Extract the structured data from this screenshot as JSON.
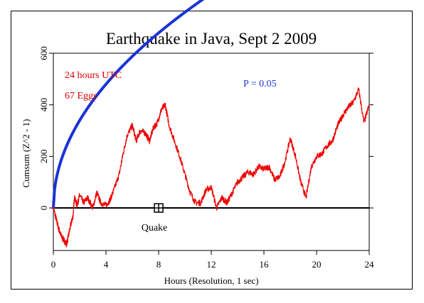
{
  "chart_data": {
    "type": "line",
    "title": "Earthquake in Java, Sept 2 2009",
    "xlabel": "Hours (Resolution, 1 sec)",
    "ylabel": "Cumsum (Z^2 - 1)",
    "xlim": [
      0,
      24
    ],
    "ylim": [
      -165,
      600
    ],
    "xticks": [
      "0",
      "4",
      "8",
      "12",
      "16",
      "20",
      "24"
    ],
    "yticks": [
      "0",
      "200",
      "400",
      "600"
    ],
    "annotations": {
      "time": "24 hours UTC",
      "eggs": "67 Eggs",
      "p_label": "P = 0.05",
      "event_label": "Quake"
    },
    "event": {
      "x": 8.0,
      "y": 0
    },
    "colors": {
      "cumsum": "#ee0000",
      "p_curve": "#1a33d6",
      "zero_line": "#000000",
      "annotation_red": "#dd0000",
      "annotation_blue": "#1a33d6"
    },
    "series": [
      {
        "type": "probability-envelope",
        "p": 0.05,
        "k": 4.0,
        "x_end": 18.6
      },
      {
        "x": [
          0,
          0.2,
          0.4,
          0.6,
          0.8,
          1.0,
          1.1,
          1.3,
          1.5,
          1.6,
          1.8,
          2.0,
          2.3,
          2.6,
          3.0,
          3.3,
          3.6,
          4.0,
          4.3,
          4.6,
          5.0,
          5.3,
          5.6,
          6.0,
          6.3,
          6.6,
          7.0,
          7.3,
          7.6,
          7.9,
          8.2,
          8.5,
          8.8,
          9.2,
          9.6,
          10.0,
          10.4,
          10.8,
          11.2,
          11.6,
          12.0,
          12.4,
          12.8,
          13.2,
          13.6,
          14.0,
          14.4,
          14.8,
          15.2,
          15.6,
          16.0,
          16.4,
          16.8,
          17.2,
          17.6,
          18.0,
          18.4,
          18.8,
          19.2,
          19.6,
          20.0,
          20.4,
          20.8,
          21.2,
          21.6,
          22.0,
          22.4,
          22.8,
          23.2,
          23.6,
          24.0
        ],
        "y": [
          0,
          -40,
          -80,
          -110,
          -125,
          -140,
          -120,
          -70,
          -30,
          40,
          10,
          50,
          20,
          40,
          0,
          60,
          20,
          10,
          30,
          70,
          130,
          210,
          280,
          320,
          260,
          300,
          290,
          260,
          310,
          330,
          380,
          400,
          320,
          260,
          200,
          130,
          60,
          20,
          20,
          70,
          80,
          0,
          40,
          20,
          60,
          100,
          120,
          140,
          130,
          160,
          150,
          160,
          110,
          120,
          180,
          270,
          200,
          100,
          40,
          160,
          200,
          210,
          240,
          260,
          320,
          360,
          390,
          410,
          460,
          330,
          400
        ]
      }
    ]
  }
}
